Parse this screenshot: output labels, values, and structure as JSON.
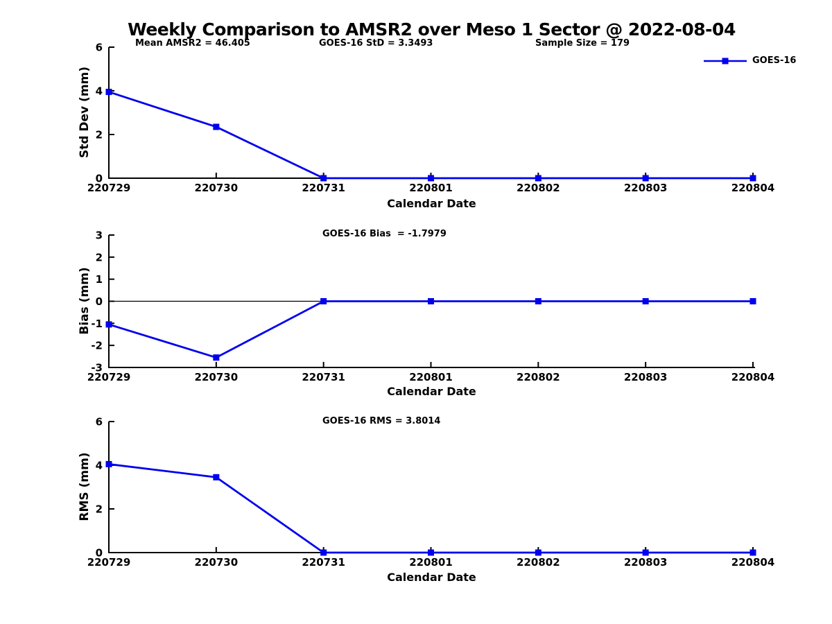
{
  "title": "Weekly Comparison to AMSR2 over Meso 1 Sector @ 2022-08-04",
  "legend": {
    "label": "GOES-16",
    "position": "top-right"
  },
  "colors": {
    "series": "#0000EE",
    "axis": "#000000",
    "text": "#000000",
    "background": "#FFFFFF"
  },
  "chart_data": [
    {
      "type": "line",
      "title": "",
      "stats": {
        "mean": "Mean AMSR2 = 46.405",
        "std": "GOES-16 StD = 3.3493",
        "sample_size": "Sample Size = 179"
      },
      "categories": [
        "220729",
        "220730",
        "220731",
        "220801",
        "220802",
        "220803",
        "220804"
      ],
      "series": [
        {
          "name": "GOES-16",
          "values": [
            3.95,
            2.35,
            0,
            0,
            0,
            0,
            0
          ]
        }
      ],
      "xlabel": "Calendar Date",
      "ylabel": "Std Dev (mm)",
      "ylim": [
        0,
        6
      ],
      "yticks": [
        0,
        2,
        4,
        6
      ],
      "marker": "square",
      "grid": false,
      "zero_line": false
    },
    {
      "type": "line",
      "annotation": "GOES-16 Bias  = -1.7979",
      "categories": [
        "220729",
        "220730",
        "220731",
        "220801",
        "220802",
        "220803",
        "220804"
      ],
      "series": [
        {
          "name": "GOES-16",
          "values": [
            -1.05,
            -2.55,
            0,
            0,
            0,
            0,
            0
          ]
        }
      ],
      "xlabel": "Calendar Date",
      "ylabel": "Bias (mm)",
      "ylim": [
        -3,
        3
      ],
      "yticks": [
        -3,
        -2,
        -1,
        0,
        1,
        2,
        3
      ],
      "marker": "square",
      "grid": false,
      "zero_line": true
    },
    {
      "type": "line",
      "annotation": "GOES-16 RMS = 3.8014",
      "categories": [
        "220729",
        "220730",
        "220731",
        "220801",
        "220802",
        "220803",
        "220804"
      ],
      "series": [
        {
          "name": "GOES-16",
          "values": [
            4.05,
            3.45,
            0,
            0,
            0,
            0,
            0
          ]
        }
      ],
      "xlabel": "Calendar Date",
      "ylabel": "RMS (mm)",
      "ylim": [
        0,
        6
      ],
      "yticks": [
        0,
        2,
        4,
        6
      ],
      "marker": "square",
      "grid": false,
      "zero_line": false
    }
  ]
}
